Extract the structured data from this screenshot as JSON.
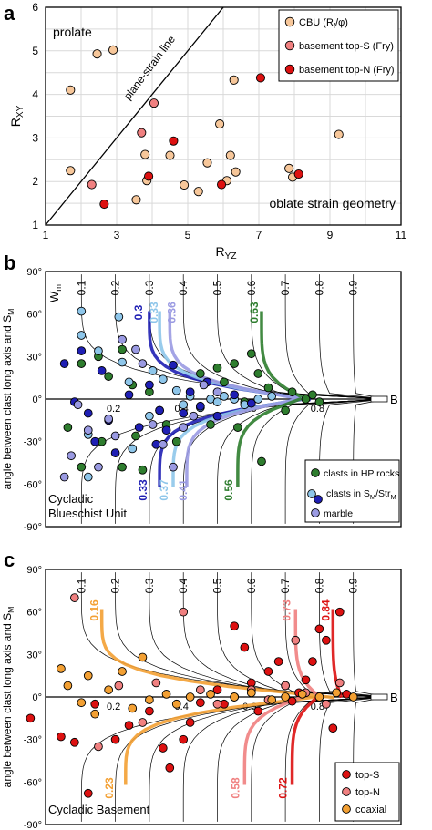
{
  "chart_data": [
    {
      "panel": "a",
      "type": "scatter",
      "xlabel": "R",
      "xlabel_sub": "YZ",
      "ylabel": "R",
      "ylabel_sub": "XY",
      "xlim": [
        1,
        11
      ],
      "ylim": [
        1,
        6
      ],
      "xticks": [
        "1",
        "3",
        "5",
        "7",
        "9",
        "11"
      ],
      "yticks": [
        "1",
        "2",
        "3",
        "4",
        "5",
        "6"
      ],
      "grid": true,
      "line_label": "plane-strain line",
      "annotations": [
        "prolate",
        "oblate strain geometry"
      ],
      "legend_position": "top-right",
      "series": [
        {
          "name": "CBU (Rf/φ)",
          "name_main": "CBU (R",
          "name_sub": "f",
          "name_tail": "/φ)",
          "color": "#f7c79a",
          "points": [
            [
              1.7,
              4.1
            ],
            [
              1.7,
              2.25
            ],
            [
              2.45,
              4.93
            ],
            [
              2.9,
              5.02
            ],
            [
              3.55,
              1.58
            ],
            [
              3.8,
              2.62
            ],
            [
              3.85,
              2.02
            ],
            [
              4.5,
              2.6
            ],
            [
              4.9,
              1.92
            ],
            [
              5.3,
              1.77
            ],
            [
              5.55,
              2.43
            ],
            [
              5.9,
              3.32
            ],
            [
              6.1,
              2.02
            ],
            [
              6.3,
              4.33
            ],
            [
              6.2,
              2.6
            ],
            [
              6.35,
              2.22
            ],
            [
              7.85,
              2.3
            ],
            [
              7.95,
              2.1
            ],
            [
              9.25,
              3.08
            ]
          ]
        },
        {
          "name": "basement top-S (Fry)",
          "color": "#f08080",
          "points": [
            [
              2.3,
              1.93
            ],
            [
              3.7,
              3.12
            ],
            [
              4.05,
              3.8
            ]
          ]
        },
        {
          "name": "basement top-N (Fry)",
          "color": "#dd1111",
          "points": [
            [
              2.65,
              1.48
            ],
            [
              3.9,
              2.12
            ],
            [
              4.6,
              2.93
            ],
            [
              5.95,
              1.93
            ],
            [
              7.05,
              4.38
            ],
            [
              8.12,
              2.17
            ]
          ]
        }
      ]
    },
    {
      "panel": "b",
      "type": "scatter",
      "ylabel": "angle between clast long axis and S",
      "ylabel_sub": "M",
      "ylim": [
        -90,
        90
      ],
      "yticks": [
        "90°",
        "60°",
        "30°",
        "0°",
        "-30°",
        "-60°",
        "-90°"
      ],
      "wm_label": "W",
      "wm_label_sub": "m",
      "wm_top": [
        "0.1",
        "0.2",
        "0.3",
        "0.4",
        "0.5",
        "0.6",
        "0.7",
        "0.8",
        "0.9"
      ],
      "wm_bottom": [
        "0.2",
        "0.4",
        "0.6",
        "0.8"
      ],
      "b_label": "B",
      "unit_label": [
        "Cycladic",
        "Blueschist Unit"
      ],
      "legend_position": "bottom-right",
      "series": [
        {
          "name": "clasts in HP rocks",
          "color": "#2e7d2e",
          "points": [
            [
              0.1,
              25
            ],
            [
              0.15,
              30
            ],
            [
              0.18,
              16
            ],
            [
              0.06,
              -20
            ],
            [
              0.1,
              -48
            ],
            [
              0.16,
              -30
            ],
            [
              0.22,
              -48
            ],
            [
              0.22,
              35
            ],
            [
              0.25,
              10
            ],
            [
              0.26,
              -26
            ],
            [
              0.28,
              -50
            ],
            [
              0.3,
              5
            ],
            [
              0.35,
              -18
            ],
            [
              0.38,
              -30
            ],
            [
              0.45,
              18
            ],
            [
              0.48,
              -18
            ],
            [
              0.5,
              22
            ],
            [
              0.52,
              12
            ],
            [
              0.55,
              25
            ],
            [
              0.56,
              -20
            ],
            [
              0.58,
              -2
            ],
            [
              0.6,
              32
            ],
            [
              0.62,
              18
            ],
            [
              0.63,
              -44
            ],
            [
              0.65,
              8
            ],
            [
              0.7,
              -8
            ],
            [
              0.72,
              5
            ],
            [
              0.76,
              0
            ],
            [
              0.78,
              3
            ],
            [
              0.8,
              -2
            ]
          ]
        },
        {
          "name": "clasts in SM/StrM",
          "name_main": "clasts in S",
          "name_sub": "M",
          "name_tail": "/Str",
          "name_sub2": "M",
          "color": "#8ec6ea",
          "points": [
            [
              0.1,
              62
            ],
            [
              0.1,
              45
            ],
            [
              0.12,
              -25
            ],
            [
              0.12,
              -55
            ],
            [
              0.15,
              34
            ],
            [
              0.21,
              58
            ],
            [
              0.22,
              26
            ],
            [
              0.24,
              12
            ],
            [
              0.25,
              -35
            ],
            [
              0.3,
              -12
            ],
            [
              0.31,
              20
            ],
            [
              0.33,
              -8
            ],
            [
              0.34,
              14
            ],
            [
              0.38,
              6
            ],
            [
              0.4,
              -4
            ],
            [
              0.42,
              2
            ],
            [
              0.45,
              -6
            ],
            [
              0.48,
              0
            ],
            [
              0.5,
              -2
            ],
            [
              0.52,
              2
            ],
            [
              0.55,
              0
            ],
            [
              0.58,
              -4
            ],
            [
              0.62,
              0
            ],
            [
              0.66,
              2
            ]
          ]
        },
        {
          "name": "",
          "color": "#1f1fb4",
          "points": [
            [
              0.05,
              25
            ],
            [
              0.08,
              -2
            ],
            [
              0.1,
              34
            ],
            [
              0.12,
              -10
            ],
            [
              0.14,
              -30
            ],
            [
              0.16,
              20
            ],
            [
              0.18,
              -15
            ],
            [
              0.2,
              -38
            ],
            [
              0.24,
              3
            ],
            [
              0.27,
              -20
            ],
            [
              0.3,
              10
            ],
            [
              0.32,
              -32
            ],
            [
              0.33,
              -8
            ],
            [
              0.35,
              -22
            ],
            [
              0.37,
              24
            ],
            [
              0.4,
              -10
            ],
            [
              0.42,
              5
            ],
            [
              0.45,
              -5
            ],
            [
              0.47,
              12
            ],
            [
              0.5,
              -12
            ],
            [
              0.55,
              3
            ],
            [
              0.6,
              -3
            ]
          ]
        },
        {
          "name": "marble",
          "color": "#9a9ae2",
          "points": [
            [
              0.05,
              -55
            ],
            [
              0.07,
              -40
            ],
            [
              0.09,
              -4
            ],
            [
              0.12,
              -22
            ],
            [
              0.15,
              -48
            ],
            [
              0.18,
              -14
            ],
            [
              0.2,
              -26
            ],
            [
              0.22,
              42
            ],
            [
              0.26,
              35
            ],
            [
              0.28,
              25
            ],
            [
              0.31,
              -18
            ],
            [
              0.34,
              -32
            ],
            [
              0.37,
              -48
            ],
            [
              0.4,
              -20
            ],
            [
              0.43,
              -12
            ],
            [
              0.46,
              10
            ],
            [
              0.5,
              5
            ]
          ]
        }
      ],
      "curve_labels": [
        {
          "text": "0.3",
          "color": "#1f1fb4"
        },
        {
          "text": "0.33",
          "color": "#8ec6ea"
        },
        {
          "text": "0.36",
          "color": "#9a9ae2"
        },
        {
          "text": "0.63",
          "color": "#2e7d2e"
        },
        {
          "text": "0.33",
          "color": "#1f1fb4"
        },
        {
          "text": "0.37",
          "color": "#8ec6ea"
        },
        {
          "text": "0.41",
          "color": "#9a9ae2"
        },
        {
          "text": "0.56",
          "color": "#2e7d2e"
        }
      ]
    },
    {
      "panel": "c",
      "type": "scatter",
      "ylabel": "angle between clast long axis and S",
      "ylabel_sub": "M",
      "ylim": [
        -90,
        90
      ],
      "yticks": [
        "90°",
        "60°",
        "30°",
        "0°",
        "-30°",
        "-60°",
        "-90°"
      ],
      "wm_top": [
        "0.1",
        "0.2",
        "0.3",
        "0.4",
        "0.5",
        "0.6",
        "0.7",
        "0.8",
        "0.9"
      ],
      "wm_bottom": [
        "0.2",
        "0.4",
        "0.6",
        "0.8"
      ],
      "b_label": "B",
      "unit_label": [
        "Cycladic Basement"
      ],
      "legend_position": "bottom-right",
      "series": [
        {
          "name": "top-S",
          "color": "#dd1111",
          "points": [
            [
              -0.05,
              -15
            ],
            [
              0.04,
              -28
            ],
            [
              0.08,
              -32
            ],
            [
              0.12,
              -68
            ],
            [
              0.14,
              -5
            ],
            [
              0.2,
              -30
            ],
            [
              0.24,
              -20
            ],
            [
              0.3,
              -10
            ],
            [
              0.34,
              -36
            ],
            [
              0.36,
              -50
            ],
            [
              0.4,
              -30
            ],
            [
              0.42,
              -18
            ],
            [
              0.45,
              -4
            ],
            [
              0.5,
              5
            ],
            [
              0.52,
              -5
            ],
            [
              0.55,
              50
            ],
            [
              0.58,
              35
            ],
            [
              0.6,
              10
            ],
            [
              0.62,
              -10
            ],
            [
              0.65,
              18
            ],
            [
              0.68,
              25
            ],
            [
              0.7,
              8
            ],
            [
              0.72,
              -3
            ],
            [
              0.74,
              3
            ],
            [
              0.76,
              12
            ],
            [
              0.78,
              25
            ],
            [
              0.8,
              48
            ],
            [
              0.82,
              40
            ],
            [
              0.84,
              -22
            ],
            [
              0.86,
              60
            ],
            [
              0.88,
              2
            ]
          ]
        },
        {
          "name": "top-N",
          "color": "#f08080",
          "points": [
            [
              0.08,
              70
            ],
            [
              0.15,
              -35
            ],
            [
              0.21,
              8
            ],
            [
              0.28,
              -18
            ],
            [
              0.32,
              10
            ],
            [
              0.4,
              60
            ],
            [
              0.45,
              5
            ],
            [
              0.5,
              -5
            ],
            [
              0.55,
              0
            ],
            [
              0.6,
              5
            ],
            [
              0.65,
              -2
            ],
            [
              0.7,
              8
            ],
            [
              0.73,
              40
            ],
            [
              0.76,
              3
            ],
            [
              0.82,
              -5
            ],
            [
              0.86,
              10
            ]
          ]
        },
        {
          "name": "coaxial",
          "color": "#f3a033",
          "points": [
            [
              0.04,
              20
            ],
            [
              0.06,
              8
            ],
            [
              0.1,
              -4
            ],
            [
              0.12,
              15
            ],
            [
              0.14,
              -12
            ],
            [
              0.18,
              5
            ],
            [
              0.22,
              18
            ],
            [
              0.25,
              -8
            ],
            [
              0.28,
              28
            ],
            [
              0.3,
              -2
            ],
            [
              0.35,
              2
            ],
            [
              0.38,
              -5
            ],
            [
              0.42,
              0
            ],
            [
              0.48,
              2
            ],
            [
              0.55,
              0
            ],
            [
              0.6,
              3
            ],
            [
              0.66,
              -2
            ],
            [
              0.7,
              0
            ],
            [
              0.75,
              2
            ],
            [
              0.8,
              0
            ],
            [
              0.85,
              3
            ],
            [
              0.9,
              0
            ]
          ]
        }
      ],
      "curve_labels": [
        {
          "text": "0.16",
          "color": "#f3a033"
        },
        {
          "text": "0.73",
          "color": "#f08080"
        },
        {
          "text": "0.84",
          "color": "#dd1111"
        },
        {
          "text": "0.23",
          "color": "#f3a033"
        },
        {
          "text": "0.58",
          "color": "#f08080"
        },
        {
          "text": "0.72",
          "color": "#dd1111"
        }
      ]
    }
  ],
  "panel_letters": [
    "a",
    "b",
    "c"
  ]
}
